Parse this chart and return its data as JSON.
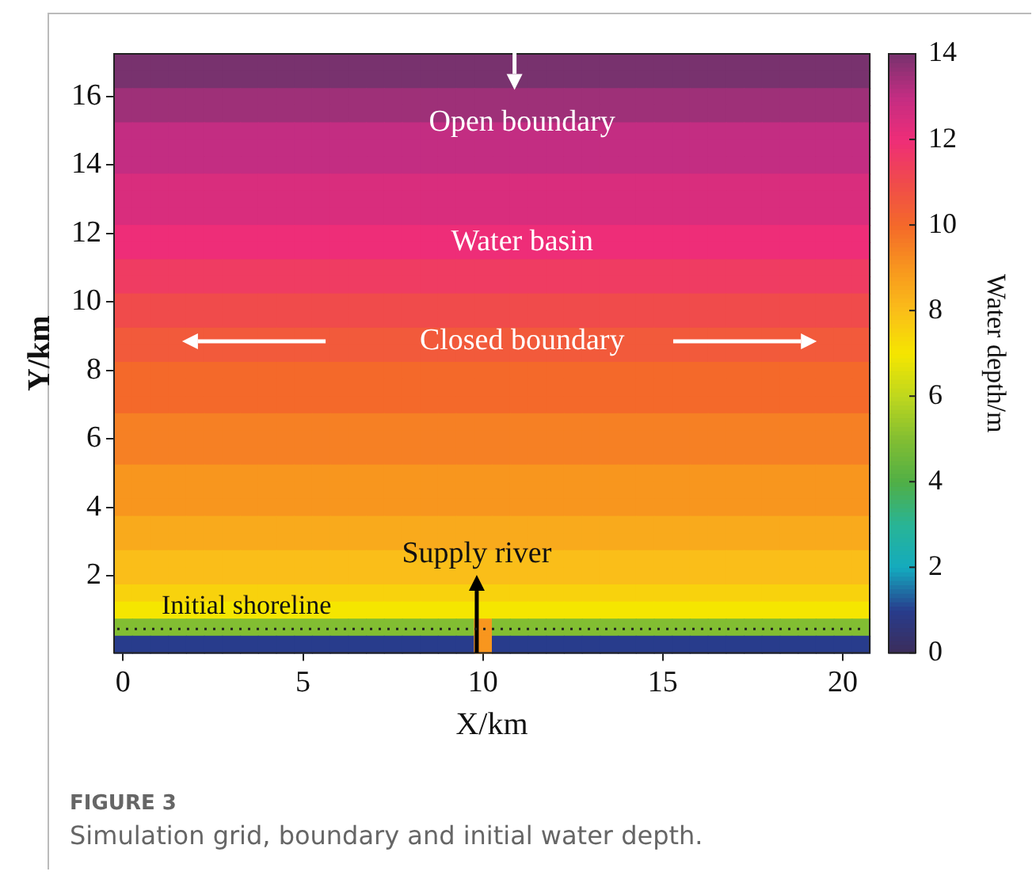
{
  "chart_data": {
    "type": "heatmap",
    "xlabel": "X/km",
    "ylabel": "Y/km",
    "clabel": "Water depth/m",
    "categories": [
      "0",
      null,
      null,
      null,
      null,
      null,
      null,
      null,
      null,
      null,
      "5",
      null,
      null,
      null,
      null,
      null,
      null,
      null,
      null,
      null,
      "10",
      null,
      null,
      null,
      null,
      null,
      null,
      null,
      null,
      null,
      "15",
      null,
      null,
      null,
      null,
      null,
      null,
      null,
      null,
      null,
      "20",
      null
    ],
    "y_categories": [
      null,
      null,
      "16",
      null,
      null,
      null,
      "14",
      null,
      null,
      null,
      "12",
      null,
      null,
      null,
      "10",
      null,
      null,
      null,
      "8",
      null,
      null,
      null,
      "6",
      null,
      null,
      null,
      "4",
      null,
      null,
      null,
      "2",
      null,
      null,
      null,
      null
    ],
    "clim": [
      0,
      14
    ],
    "cticks": [
      0,
      2,
      4,
      6,
      8,
      10,
      12,
      14
    ],
    "cells": [
      [
        14,
        14,
        14,
        14,
        14,
        14,
        14,
        14,
        14,
        14,
        14,
        14,
        14,
        14,
        14,
        14,
        14,
        14,
        14,
        14,
        14,
        14,
        14,
        14,
        14,
        14,
        14,
        14,
        14,
        14,
        14,
        14,
        14,
        14,
        14,
        14,
        14,
        14,
        14,
        14,
        14,
        14
      ],
      [
        14,
        14,
        14,
        14,
        14,
        14,
        14,
        14,
        14,
        14,
        14,
        14,
        14,
        14,
        14,
        14,
        14,
        14,
        14,
        14,
        14,
        14,
        14,
        14,
        14,
        14,
        14,
        14,
        14,
        14,
        14,
        14,
        14,
        14,
        14,
        14,
        14,
        14,
        14,
        14,
        14,
        14
      ],
      [
        13.5,
        13.5,
        13.5,
        13.5,
        13.5,
        13.5,
        13.5,
        13.5,
        13.5,
        13.5,
        13.5,
        13.5,
        13.5,
        13.5,
        13.5,
        13.5,
        13.5,
        13.5,
        13.5,
        13.5,
        13.5,
        13.5,
        13.5,
        13.5,
        13.5,
        13.5,
        13.5,
        13.5,
        13.5,
        13.5,
        13.5,
        13.5,
        13.5,
        13.5,
        13.5,
        13.5,
        13.5,
        13.5,
        13.5,
        13.5,
        13.5,
        13.5
      ],
      [
        13.5,
        13.5,
        13.5,
        13.5,
        13.5,
        13.5,
        13.5,
        13.5,
        13.5,
        13.5,
        13.5,
        13.5,
        13.5,
        13.5,
        13.5,
        13.5,
        13.5,
        13.5,
        13.5,
        13.5,
        13.5,
        13.5,
        13.5,
        13.5,
        13.5,
        13.5,
        13.5,
        13.5,
        13.5,
        13.5,
        13.5,
        13.5,
        13.5,
        13.5,
        13.5,
        13.5,
        13.5,
        13.5,
        13.5,
        13.5,
        13.5,
        13.5
      ],
      [
        13,
        13,
        13,
        13,
        13,
        13,
        13,
        13,
        13,
        13,
        13,
        13,
        13,
        13,
        13,
        13,
        13,
        13,
        13,
        13,
        13,
        13,
        13,
        13,
        13,
        13,
        13,
        13,
        13,
        13,
        13,
        13,
        13,
        13,
        13,
        13,
        13,
        13,
        13,
        13,
        13,
        13
      ],
      [
        13,
        13,
        13,
        13,
        13,
        13,
        13,
        13,
        13,
        13,
        13,
        13,
        13,
        13,
        13,
        13,
        13,
        13,
        13,
        13,
        13,
        13,
        13,
        13,
        13,
        13,
        13,
        13,
        13,
        13,
        13,
        13,
        13,
        13,
        13,
        13,
        13,
        13,
        13,
        13,
        13,
        13
      ],
      [
        13,
        13,
        13,
        13,
        13,
        13,
        13,
        13,
        13,
        13,
        13,
        13,
        13,
        13,
        13,
        13,
        13,
        13,
        13,
        13,
        13,
        13,
        13,
        13,
        13,
        13,
        13,
        13,
        13,
        13,
        13,
        13,
        13,
        13,
        13,
        13,
        13,
        13,
        13,
        13,
        13,
        13
      ],
      [
        12.5,
        12.5,
        12.5,
        12.5,
        12.5,
        12.5,
        12.5,
        12.5,
        12.5,
        12.5,
        12.5,
        12.5,
        12.5,
        12.5,
        12.5,
        12.5,
        12.5,
        12.5,
        12.5,
        12.5,
        12.5,
        12.5,
        12.5,
        12.5,
        12.5,
        12.5,
        12.5,
        12.5,
        12.5,
        12.5,
        12.5,
        12.5,
        12.5,
        12.5,
        12.5,
        12.5,
        12.5,
        12.5,
        12.5,
        12.5,
        12.5,
        12.5
      ],
      [
        12.5,
        12.5,
        12.5,
        12.5,
        12.5,
        12.5,
        12.5,
        12.5,
        12.5,
        12.5,
        12.5,
        12.5,
        12.5,
        12.5,
        12.5,
        12.5,
        12.5,
        12.5,
        12.5,
        12.5,
        12.5,
        12.5,
        12.5,
        12.5,
        12.5,
        12.5,
        12.5,
        12.5,
        12.5,
        12.5,
        12.5,
        12.5,
        12.5,
        12.5,
        12.5,
        12.5,
        12.5,
        12.5,
        12.5,
        12.5,
        12.5,
        12.5
      ],
      [
        12.5,
        12.5,
        12.5,
        12.5,
        12.5,
        12.5,
        12.5,
        12.5,
        12.5,
        12.5,
        12.5,
        12.5,
        12.5,
        12.5,
        12.5,
        12.5,
        12.5,
        12.5,
        12.5,
        12.5,
        12.5,
        12.5,
        12.5,
        12.5,
        12.5,
        12.5,
        12.5,
        12.5,
        12.5,
        12.5,
        12.5,
        12.5,
        12.5,
        12.5,
        12.5,
        12.5,
        12.5,
        12.5,
        12.5,
        12.5,
        12.5,
        12.5
      ],
      [
        12,
        12,
        12,
        12,
        12,
        12,
        12,
        12,
        12,
        12,
        12,
        12,
        12,
        12,
        12,
        12,
        12,
        12,
        12,
        12,
        12,
        12,
        12,
        12,
        12,
        12,
        12,
        12,
        12,
        12,
        12,
        12,
        12,
        12,
        12,
        12,
        12,
        12,
        12,
        12,
        12,
        12
      ],
      [
        12,
        12,
        12,
        12,
        12,
        12,
        12,
        12,
        12,
        12,
        12,
        12,
        12,
        12,
        12,
        12,
        12,
        12,
        12,
        12,
        12,
        12,
        12,
        12,
        12,
        12,
        12,
        12,
        12,
        12,
        12,
        12,
        12,
        12,
        12,
        12,
        12,
        12,
        12,
        12,
        12,
        12
      ],
      [
        11.5,
        11.5,
        11.5,
        11.5,
        11.5,
        11.5,
        11.5,
        11.5,
        11.5,
        11.5,
        11.5,
        11.5,
        11.5,
        11.5,
        11.5,
        11.5,
        11.5,
        11.5,
        11.5,
        11.5,
        11.5,
        11.5,
        11.5,
        11.5,
        11.5,
        11.5,
        11.5,
        11.5,
        11.5,
        11.5,
        11.5,
        11.5,
        11.5,
        11.5,
        11.5,
        11.5,
        11.5,
        11.5,
        11.5,
        11.5,
        11.5,
        11.5
      ],
      [
        11.5,
        11.5,
        11.5,
        11.5,
        11.5,
        11.5,
        11.5,
        11.5,
        11.5,
        11.5,
        11.5,
        11.5,
        11.5,
        11.5,
        11.5,
        11.5,
        11.5,
        11.5,
        11.5,
        11.5,
        11.5,
        11.5,
        11.5,
        11.5,
        11.5,
        11.5,
        11.5,
        11.5,
        11.5,
        11.5,
        11.5,
        11.5,
        11.5,
        11.5,
        11.5,
        11.5,
        11.5,
        11.5,
        11.5,
        11.5,
        11.5,
        11.5
      ],
      [
        11,
        11,
        11,
        11,
        11,
        11,
        11,
        11,
        11,
        11,
        11,
        11,
        11,
        11,
        11,
        11,
        11,
        11,
        11,
        11,
        11,
        11,
        11,
        11,
        11,
        11,
        11,
        11,
        11,
        11,
        11,
        11,
        11,
        11,
        11,
        11,
        11,
        11,
        11,
        11,
        11,
        11
      ],
      [
        11,
        11,
        11,
        11,
        11,
        11,
        11,
        11,
        11,
        11,
        11,
        11,
        11,
        11,
        11,
        11,
        11,
        11,
        11,
        11,
        11,
        11,
        11,
        11,
        11,
        11,
        11,
        11,
        11,
        11,
        11,
        11,
        11,
        11,
        11,
        11,
        11,
        11,
        11,
        11,
        11,
        11
      ],
      [
        10.5,
        10.5,
        10.5,
        10.5,
        10.5,
        10.5,
        10.5,
        10.5,
        10.5,
        10.5,
        10.5,
        10.5,
        10.5,
        10.5,
        10.5,
        10.5,
        10.5,
        10.5,
        10.5,
        10.5,
        10.5,
        10.5,
        10.5,
        10.5,
        10.5,
        10.5,
        10.5,
        10.5,
        10.5,
        10.5,
        10.5,
        10.5,
        10.5,
        10.5,
        10.5,
        10.5,
        10.5,
        10.5,
        10.5,
        10.5,
        10.5,
        10.5
      ],
      [
        10.5,
        10.5,
        10.5,
        10.5,
        10.5,
        10.5,
        10.5,
        10.5,
        10.5,
        10.5,
        10.5,
        10.5,
        10.5,
        10.5,
        10.5,
        10.5,
        10.5,
        10.5,
        10.5,
        10.5,
        10.5,
        10.5,
        10.5,
        10.5,
        10.5,
        10.5,
        10.5,
        10.5,
        10.5,
        10.5,
        10.5,
        10.5,
        10.5,
        10.5,
        10.5,
        10.5,
        10.5,
        10.5,
        10.5,
        10.5,
        10.5,
        10.5
      ],
      [
        10,
        10,
        10,
        10,
        10,
        10,
        10,
        10,
        10,
        10,
        10,
        10,
        10,
        10,
        10,
        10,
        10,
        10,
        10,
        10,
        10,
        10,
        10,
        10,
        10,
        10,
        10,
        10,
        10,
        10,
        10,
        10,
        10,
        10,
        10,
        10,
        10,
        10,
        10,
        10,
        10,
        10
      ],
      [
        10,
        10,
        10,
        10,
        10,
        10,
        10,
        10,
        10,
        10,
        10,
        10,
        10,
        10,
        10,
        10,
        10,
        10,
        10,
        10,
        10,
        10,
        10,
        10,
        10,
        10,
        10,
        10,
        10,
        10,
        10,
        10,
        10,
        10,
        10,
        10,
        10,
        10,
        10,
        10,
        10,
        10
      ],
      [
        10,
        10,
        10,
        10,
        10,
        10,
        10,
        10,
        10,
        10,
        10,
        10,
        10,
        10,
        10,
        10,
        10,
        10,
        10,
        10,
        10,
        10,
        10,
        10,
        10,
        10,
        10,
        10,
        10,
        10,
        10,
        10,
        10,
        10,
        10,
        10,
        10,
        10,
        10,
        10,
        10,
        10
      ],
      [
        9.5,
        9.5,
        9.5,
        9.5,
        9.5,
        9.5,
        9.5,
        9.5,
        9.5,
        9.5,
        9.5,
        9.5,
        9.5,
        9.5,
        9.5,
        9.5,
        9.5,
        9.5,
        9.5,
        9.5,
        9.5,
        9.5,
        9.5,
        9.5,
        9.5,
        9.5,
        9.5,
        9.5,
        9.5,
        9.5,
        9.5,
        9.5,
        9.5,
        9.5,
        9.5,
        9.5,
        9.5,
        9.5,
        9.5,
        9.5,
        9.5,
        9.5
      ],
      [
        9.5,
        9.5,
        9.5,
        9.5,
        9.5,
        9.5,
        9.5,
        9.5,
        9.5,
        9.5,
        9.5,
        9.5,
        9.5,
        9.5,
        9.5,
        9.5,
        9.5,
        9.5,
        9.5,
        9.5,
        9.5,
        9.5,
        9.5,
        9.5,
        9.5,
        9.5,
        9.5,
        9.5,
        9.5,
        9.5,
        9.5,
        9.5,
        9.5,
        9.5,
        9.5,
        9.5,
        9.5,
        9.5,
        9.5,
        9.5,
        9.5,
        9.5
      ],
      [
        9.5,
        9.5,
        9.5,
        9.5,
        9.5,
        9.5,
        9.5,
        9.5,
        9.5,
        9.5,
        9.5,
        9.5,
        9.5,
        9.5,
        9.5,
        9.5,
        9.5,
        9.5,
        9.5,
        9.5,
        9.5,
        9.5,
        9.5,
        9.5,
        9.5,
        9.5,
        9.5,
        9.5,
        9.5,
        9.5,
        9.5,
        9.5,
        9.5,
        9.5,
        9.5,
        9.5,
        9.5,
        9.5,
        9.5,
        9.5,
        9.5,
        9.5
      ],
      [
        9,
        9,
        9,
        9,
        9,
        9,
        9,
        9,
        9,
        9,
        9,
        9,
        9,
        9,
        9,
        9,
        9,
        9,
        9,
        9,
        9,
        9,
        9,
        9,
        9,
        9,
        9,
        9,
        9,
        9,
        9,
        9,
        9,
        9,
        9,
        9,
        9,
        9,
        9,
        9,
        9,
        9
      ],
      [
        9,
        9,
        9,
        9,
        9,
        9,
        9,
        9,
        9,
        9,
        9,
        9,
        9,
        9,
        9,
        9,
        9,
        9,
        9,
        9,
        9,
        9,
        9,
        9,
        9,
        9,
        9,
        9,
        9,
        9,
        9,
        9,
        9,
        9,
        9,
        9,
        9,
        9,
        9,
        9,
        9,
        9
      ],
      [
        9,
        9,
        9,
        9,
        9,
        9,
        9,
        9,
        9,
        9,
        9,
        9,
        9,
        9,
        9,
        9,
        9,
        9,
        9,
        9,
        9,
        9,
        9,
        9,
        9,
        9,
        9,
        9,
        9,
        9,
        9,
        9,
        9,
        9,
        9,
        9,
        9,
        9,
        9,
        9,
        9,
        9
      ],
      [
        8.5,
        8.5,
        8.5,
        8.5,
        8.5,
        8.5,
        8.5,
        8.5,
        8.5,
        8.5,
        8.5,
        8.5,
        8.5,
        8.5,
        8.5,
        8.5,
        8.5,
        8.5,
        8.5,
        8.5,
        8.5,
        8.5,
        8.5,
        8.5,
        8.5,
        8.5,
        8.5,
        8.5,
        8.5,
        8.5,
        8.5,
        8.5,
        8.5,
        8.5,
        8.5,
        8.5,
        8.5,
        8.5,
        8.5,
        8.5,
        8.5,
        8.5
      ],
      [
        8.5,
        8.5,
        8.5,
        8.5,
        8.5,
        8.5,
        8.5,
        8.5,
        8.5,
        8.5,
        8.5,
        8.5,
        8.5,
        8.5,
        8.5,
        8.5,
        8.5,
        8.5,
        8.5,
        8.5,
        8.5,
        8.5,
        8.5,
        8.5,
        8.5,
        8.5,
        8.5,
        8.5,
        8.5,
        8.5,
        8.5,
        8.5,
        8.5,
        8.5,
        8.5,
        8.5,
        8.5,
        8.5,
        8.5,
        8.5,
        8.5,
        8.5
      ],
      [
        8,
        8,
        8,
        8,
        8,
        8,
        8,
        8,
        8,
        8,
        8,
        8,
        8,
        8,
        8,
        8,
        8,
        8,
        8,
        8,
        8,
        8,
        8,
        8,
        8,
        8,
        8,
        8,
        8,
        8,
        8,
        8,
        8,
        8,
        8,
        8,
        8,
        8,
        8,
        8,
        8,
        8
      ],
      [
        8,
        8,
        8,
        8,
        8,
        8,
        8,
        8,
        8,
        8,
        8,
        8,
        8,
        8,
        8,
        8,
        8,
        8,
        8,
        8,
        8,
        8,
        8,
        8,
        8,
        8,
        8,
        8,
        8,
        8,
        8,
        8,
        8,
        8,
        8,
        8,
        8,
        8,
        8,
        8,
        8,
        8
      ],
      [
        7.5,
        7.5,
        7.5,
        7.5,
        7.5,
        7.5,
        7.5,
        7.5,
        7.5,
        7.5,
        7.5,
        7.5,
        7.5,
        7.5,
        7.5,
        7.5,
        7.5,
        7.5,
        7.5,
        7.5,
        7.5,
        7.5,
        7.5,
        7.5,
        7.5,
        7.5,
        7.5,
        7.5,
        7.5,
        7.5,
        7.5,
        7.5,
        7.5,
        7.5,
        7.5,
        7.5,
        7.5,
        7.5,
        7.5,
        7.5,
        7.5,
        7.5
      ],
      [
        7,
        7,
        7,
        7,
        7,
        7,
        7,
        7,
        7,
        7,
        7,
        7,
        7,
        7,
        7,
        7,
        7,
        7,
        7,
        7,
        7,
        7,
        7,
        7,
        7,
        7,
        7,
        7,
        7,
        7,
        7,
        7,
        7,
        7,
        7,
        7,
        7,
        7,
        7,
        7,
        7,
        7
      ],
      [
        5,
        5,
        5,
        5,
        5,
        5,
        5,
        5,
        5,
        5,
        5,
        5,
        5,
        5,
        5,
        5,
        5,
        5,
        5,
        5,
        9,
        5,
        5,
        5,
        5,
        5,
        5,
        5,
        5,
        5,
        5,
        5,
        5,
        5,
        5,
        5,
        5,
        5,
        5,
        5,
        5,
        5
      ],
      [
        1,
        1,
        1,
        1,
        1,
        1,
        1,
        1,
        1,
        1,
        1,
        1,
        1,
        1,
        1,
        1,
        1,
        1,
        1,
        1,
        9,
        1,
        1,
        1,
        1,
        1,
        1,
        1,
        1,
        1,
        1,
        1,
        1,
        1,
        1,
        1,
        1,
        1,
        1,
        1,
        1,
        1
      ]
    ],
    "annotations": [
      "Open boundary",
      "Water basin",
      "Closed boundary",
      "Supply river",
      "Initial shoreline",
      "FIGURE 3",
      "Simulation grid, boundary and initial water depth."
    ]
  }
}
